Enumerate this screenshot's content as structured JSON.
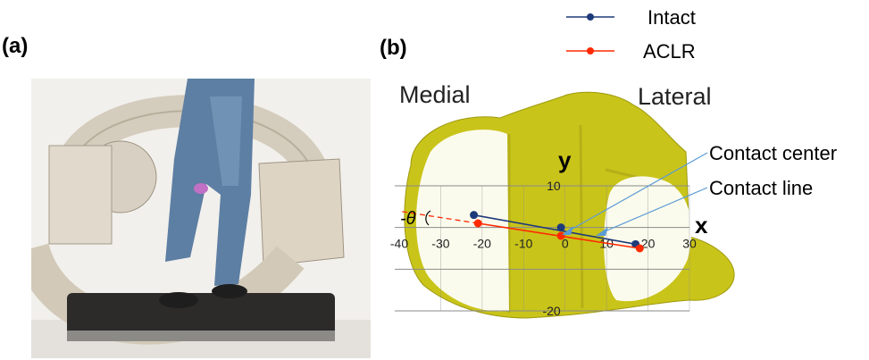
{
  "panel_a": {
    "label": "(a)"
  },
  "panel_b": {
    "label": "(b)",
    "legend": [
      {
        "name": "Intact",
        "color": "#1f3a7a"
      },
      {
        "name": "ACLR",
        "color": "#ff2a00"
      }
    ],
    "region_labels": {
      "medial": "Medial",
      "lateral": "Lateral"
    },
    "annotations": {
      "contact_center": "Contact center",
      "contact_line": "Contact line",
      "angle": "-θ"
    },
    "axis_labels": {
      "x": "x",
      "y": "y"
    },
    "x_ticks": [
      "-40",
      "-30",
      "-20",
      "-10",
      "0",
      "10",
      "20",
      "30"
    ],
    "y_ticks": [
      "10",
      "-20"
    ],
    "colors": {
      "cartilage": "#ffffff",
      "bone": "#c9c419",
      "grid": "#8a8a8a",
      "callout": "#5b9bd5"
    }
  },
  "chart_data": {
    "type": "line",
    "xlim": [
      -40,
      30
    ],
    "ylim": [
      -20,
      10
    ],
    "series": [
      {
        "name": "Intact",
        "x": [
          -22,
          -1,
          17
        ],
        "y": [
          3,
          0,
          -4
        ]
      },
      {
        "name": "ACLR",
        "x": [
          -21,
          -1,
          18
        ],
        "y": [
          1,
          -2,
          -5
        ]
      }
    ]
  }
}
